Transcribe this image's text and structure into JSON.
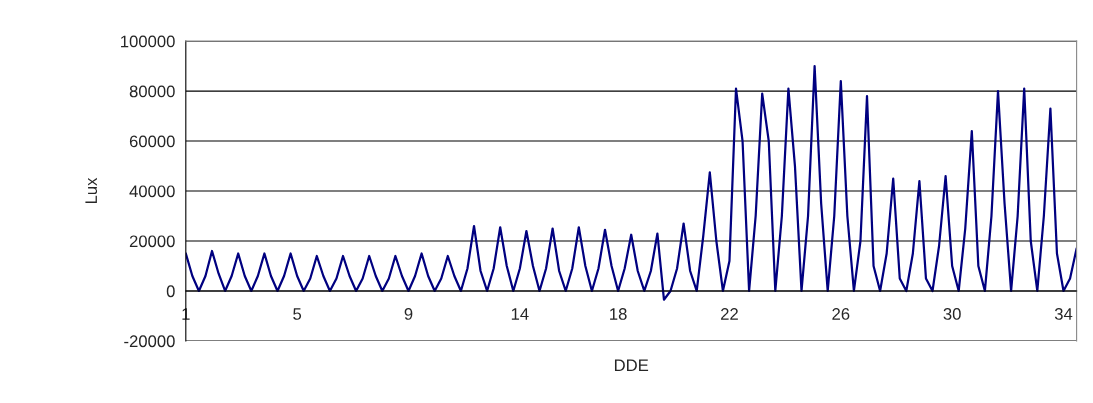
{
  "chart_data": {
    "type": "line",
    "xlabel": "DDE",
    "ylabel": "Lux",
    "categories": [
      "1",
      null,
      null,
      null,
      null,
      null,
      null,
      null,
      null,
      null,
      null,
      null,
      null,
      null,
      null,
      null,
      null,
      "5",
      null,
      null,
      null,
      null,
      null,
      null,
      null,
      null,
      null,
      null,
      null,
      null,
      null,
      null,
      null,
      null,
      "9",
      null,
      null,
      null,
      null,
      null,
      null,
      null,
      null,
      null,
      null,
      null,
      null,
      null,
      null,
      null,
      null,
      "14",
      null,
      null,
      null,
      null,
      null,
      null,
      null,
      null,
      null,
      null,
      null,
      null,
      null,
      null,
      "18",
      null,
      null,
      null,
      null,
      null,
      null,
      null,
      null,
      null,
      null,
      null,
      null,
      null,
      null,
      null,
      null,
      "22",
      null,
      null,
      null,
      null,
      null,
      null,
      null,
      null,
      null,
      null,
      null,
      null,
      null,
      null,
      null,
      null,
      "26",
      null,
      null,
      null,
      null,
      null,
      null,
      null,
      null,
      null,
      null,
      null,
      null,
      null,
      null,
      null,
      null,
      "30",
      null,
      null,
      null,
      null,
      null,
      null,
      null,
      null,
      null,
      null,
      null,
      null,
      null,
      null,
      null,
      null,
      "34",
      null,
      null
    ],
    "series": [
      {
        "color": "#000080",
        "values": [
          15000,
          6000,
          0,
          6000,
          16000,
          7000,
          0,
          6000,
          15000,
          6000,
          0,
          6000,
          15000,
          6000,
          0,
          6000,
          15000,
          6000,
          0,
          5000,
          14000,
          6000,
          0,
          5000,
          14000,
          6000,
          0,
          5000,
          14000,
          6000,
          0,
          5000,
          14000,
          6000,
          0,
          6000,
          15000,
          6000,
          0,
          5000,
          14000,
          6000,
          0,
          9000,
          26000,
          8000,
          0,
          9000,
          25500,
          10000,
          0,
          9000,
          24000,
          10000,
          0,
          9000,
          25000,
          8000,
          0,
          9000,
          25500,
          10000,
          0,
          9000,
          24500,
          10000,
          0,
          9000,
          22500,
          8000,
          0,
          8000,
          23000,
          -3500,
          0,
          9000,
          27000,
          8000,
          0,
          22000,
          47500,
          20000,
          0,
          12000,
          81000,
          60000,
          0,
          30000,
          79000,
          60000,
          0,
          30000,
          81000,
          50000,
          0,
          30000,
          90000,
          35000,
          0,
          30000,
          84000,
          30000,
          0,
          20000,
          78000,
          10000,
          0,
          15000,
          45000,
          5000,
          0,
          15000,
          44000,
          5000,
          0,
          18000,
          46000,
          10000,
          0,
          25000,
          64000,
          10000,
          0,
          30000,
          80000,
          35000,
          0,
          30000,
          81000,
          20000,
          0,
          30000,
          73000,
          15000,
          0,
          5000,
          17000
        ]
      }
    ],
    "ylim": [
      -20000,
      100000
    ],
    "yticks": [
      -20000,
      0,
      20000,
      40000,
      60000,
      80000,
      100000
    ],
    "grid": "y",
    "marker": "none",
    "line_style": "solid"
  }
}
